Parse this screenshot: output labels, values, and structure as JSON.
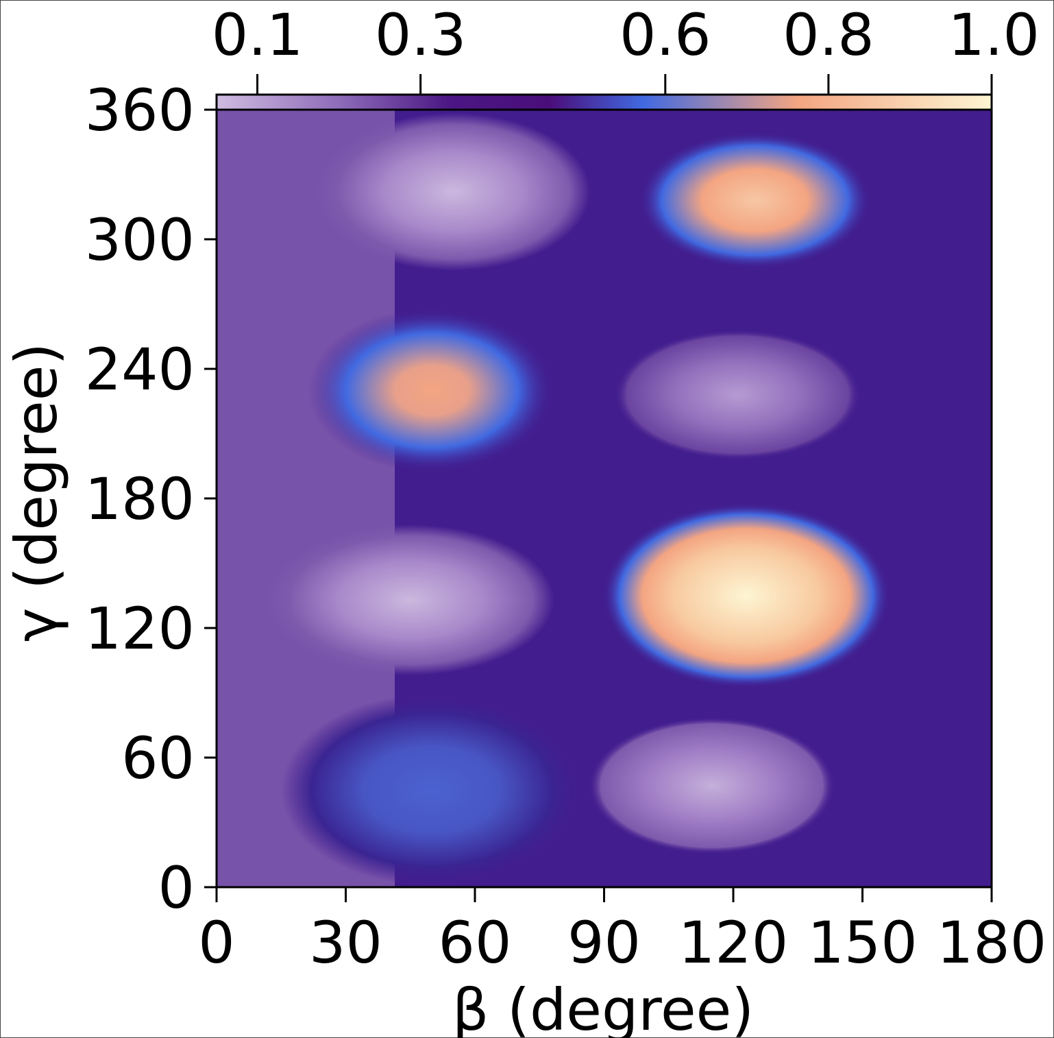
{
  "chart_data": {
    "type": "heatmap",
    "title": "",
    "xlabel": "β (degree)",
    "ylabel": "γ (degree)",
    "x_ticks": [
      "0",
      "30",
      "60",
      "90",
      "120",
      "150",
      "180"
    ],
    "y_ticks": [
      "0",
      "60",
      "120",
      "180",
      "240",
      "300",
      "360"
    ],
    "xlim": [
      0,
      180
    ],
    "ylim": [
      0,
      360
    ],
    "grid": false,
    "colorbar": {
      "placement": "top",
      "ticks": [
        "0.1",
        "0.3",
        "0.6",
        "0.8",
        "1.0"
      ],
      "tick_values": [
        0.1,
        0.3,
        0.6,
        0.8,
        1.0
      ],
      "range": [
        0.05,
        1.0
      ]
    },
    "colormap": [
      "#d0bce0",
      "#8d6bb8",
      "#4b1784",
      "#4a0e7a",
      "#4169e1",
      "#f4a582",
      "#fdf5d3"
    ],
    "peaks": [
      {
        "x": 123,
        "y": 135,
        "value": 1.0
      },
      {
        "x": 125,
        "y": 318,
        "value": 0.8
      },
      {
        "x": 50,
        "y": 230,
        "value": 0.72
      },
      {
        "x": 55,
        "y": 322,
        "value": 0.14
      },
      {
        "x": 45,
        "y": 133,
        "value": 0.14
      },
      {
        "x": 115,
        "y": 47,
        "value": 0.15
      },
      {
        "x": 121,
        "y": 228,
        "value": 0.18
      },
      {
        "x": 50,
        "y": 45,
        "value": 0.4
      }
    ]
  }
}
